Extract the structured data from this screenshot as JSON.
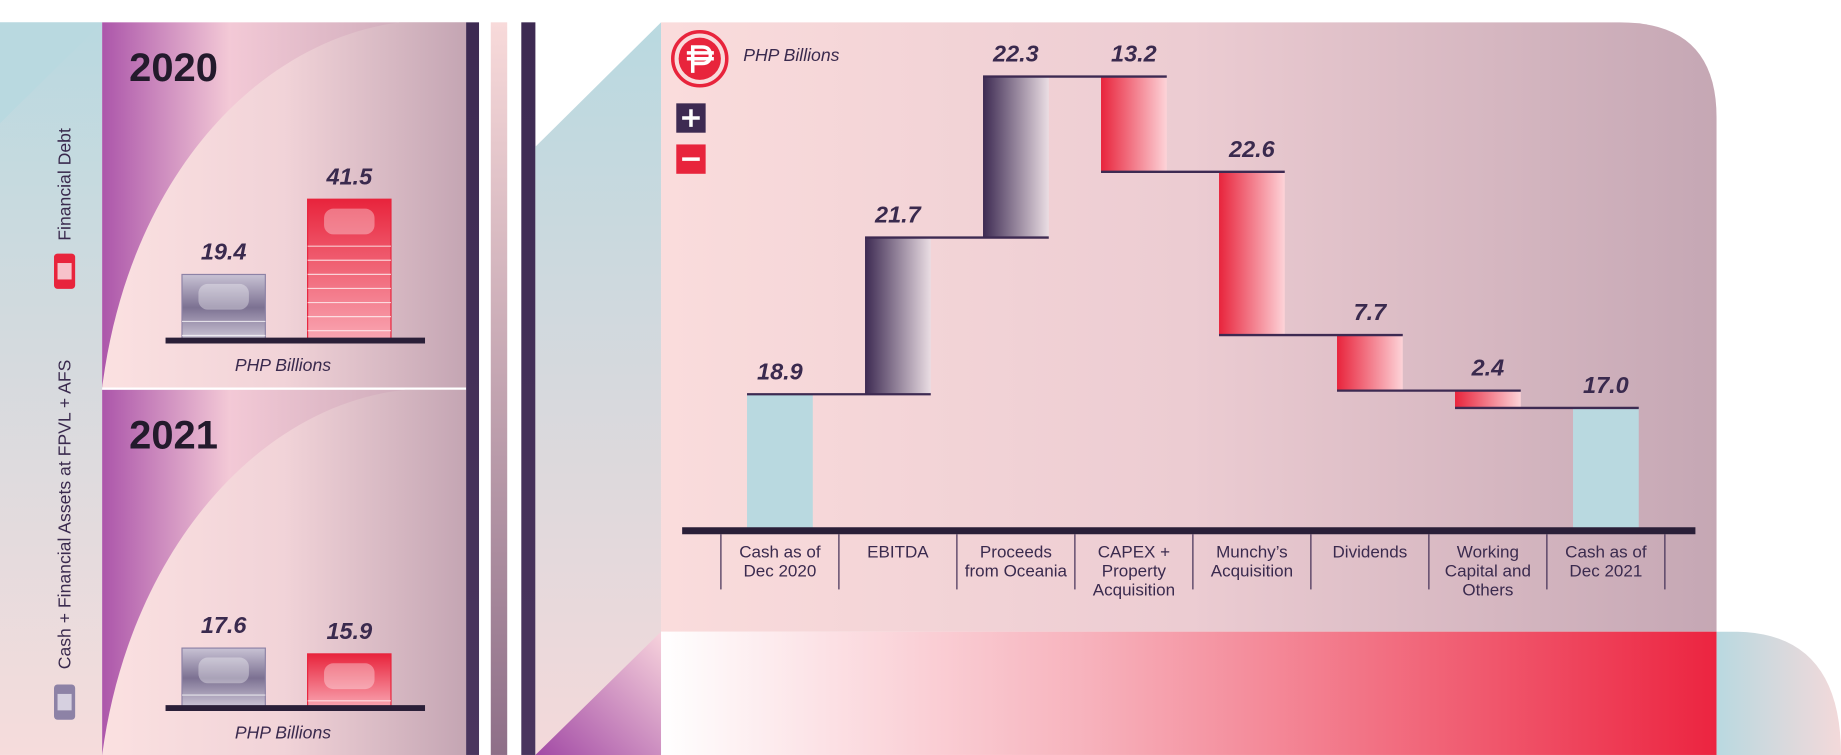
{
  "chart_data": [
    {
      "type": "bar",
      "title": "2020",
      "x_label": "PHP Billions",
      "categories": [
        null
      ],
      "series": [
        {
          "name": "Cash + Financial Assets at FPVL + AFS",
          "color": "#8d82a6",
          "values": [
            19.4
          ]
        },
        {
          "name": "Financial Debt",
          "color": "#e8243c",
          "values": [
            41.5
          ]
        }
      ]
    },
    {
      "type": "bar",
      "title": "2021",
      "x_label": "PHP Billions",
      "categories": [
        null
      ],
      "series": [
        {
          "color": "#8d82a6",
          "values": [
            17.6
          ]
        },
        {
          "color": "#e8243c",
          "values": [
            15.9
          ]
        }
      ]
    },
    {
      "type": "waterfall",
      "subtitle": "PHP Billions",
      "categories": [
        "Cash as of Dec 2020",
        "EBITDA",
        "Proceeds from Oceania",
        "CAPEX + Property Acquisition",
        "Munchy’s Acquisition",
        "Dividends",
        "Working Capital and Others",
        "Cash as of Dec 2021"
      ],
      "values": [
        18.9,
        21.7,
        22.3,
        -13.2,
        -22.6,
        -7.7,
        -2.4,
        17.0
      ],
      "value_labels": [
        "18.9",
        "21.7",
        "22.3",
        "13.2",
        "22.6",
        "7.7",
        "2.4",
        "17.0"
      ],
      "total_color": "#b9d9e0",
      "increase_color": "#3d2a52",
      "decrease_color": "#e8243c"
    }
  ]
}
